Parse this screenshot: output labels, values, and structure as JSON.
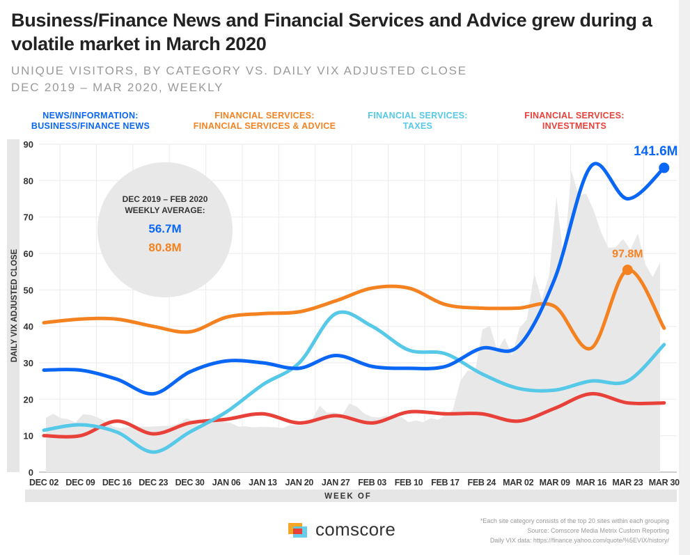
{
  "title": "Business/Finance News and Financial Services and Advice grew during a volatile market in March 2020",
  "subtitle1": "UNIQUE VISITORS, BY CATEGORY VS. DAILY VIX ADJUSTED CLOSE",
  "subtitle2": "DEC 2019 – MAR 2020, WEEKLY",
  "legend": [
    {
      "line1": "NEWS/INFORMATION:",
      "line2": "BUSINESS/FINANCE NEWS",
      "color": "#0a66f5"
    },
    {
      "line1": "FINANCIAL SERVICES:",
      "line2": "FINANCIAL SERVICES & ADVICE",
      "color": "#f58220"
    },
    {
      "line1": "FINANCIAL SERVICES:",
      "line2": "TAXES",
      "color": "#56c8e8"
    },
    {
      "line1": "FINANCIAL SERVICES:",
      "line2": "INVESTMENTS",
      "color": "#e8413a"
    }
  ],
  "callout": {
    "line1": "DEC 2019 – FEB 2020",
    "line2": "WEEKLY AVERAGE:",
    "value_news": "56.7M",
    "value_advice": "80.8M"
  },
  "footnotes": [
    "*Each site category consists of the top 20 sites within each grouping",
    "Source: Comscore Media Metrix Custom Reporting",
    "Daily VIX data: https://finance.yahoo.com/quote/%5EVIX/history/"
  ],
  "logo_text": "comscore",
  "chart_data": {
    "type": "line",
    "ylabel": "DAILY VIX ADJUSTED CLOSE",
    "xlabel": "WEEK OF",
    "ylim": [
      0,
      90
    ],
    "yticks": [
      0,
      10,
      20,
      30,
      40,
      50,
      60,
      70,
      80,
      90
    ],
    "grid": true,
    "categories": [
      "DEC 02",
      "DEC 09",
      "DEC 16",
      "DEC 23",
      "DEC 30",
      "JAN 06",
      "JAN 13",
      "JAN 20",
      "JAN 27",
      "FEB 03",
      "FEB 10",
      "FEB 17",
      "FEB 24",
      "MAR 02",
      "MAR 09",
      "MAR 16",
      "MAR 23",
      "MAR 30"
    ],
    "series": [
      {
        "name": "NEWS/INFORMATION: BUSINESS/FINANCE NEWS",
        "color": "#0a66f5",
        "values": [
          28,
          28,
          25.5,
          21.5,
          27.5,
          30.5,
          30,
          28.5,
          32,
          29,
          28.5,
          29,
          34,
          34.5,
          53,
          84,
          75,
          83.5
        ],
        "end_label": "141.6M",
        "label_index": 17
      },
      {
        "name": "FINANCIAL SERVICES: FINANCIAL SERVICES & ADVICE",
        "color": "#f58220",
        "values": [
          41,
          42,
          42,
          40,
          38.5,
          42.5,
          43.5,
          44,
          47,
          50.5,
          50.5,
          46,
          45,
          45,
          45.5,
          34,
          55.5,
          39.5
        ],
        "end_label": "97.8M",
        "label_index": 16
      },
      {
        "name": "FINANCIAL SERVICES: TAXES",
        "color": "#56c8e8",
        "values": [
          11.5,
          13,
          11,
          5.5,
          11,
          16.5,
          24,
          30,
          43.5,
          40,
          33.5,
          32.5,
          27,
          23,
          22.5,
          25,
          25,
          35
        ]
      },
      {
        "name": "FINANCIAL SERVICES: INVESTMENTS",
        "color": "#e8413a",
        "values": [
          10,
          10,
          14,
          10.5,
          13.5,
          14.5,
          16,
          13.5,
          15.5,
          13.5,
          16.5,
          16,
          16,
          14,
          17.5,
          21.5,
          19,
          19
        ]
      }
    ],
    "vix_area": {
      "color": "#e8e8e8",
      "values": [
        14.9,
        16.0,
        14.8,
        14.5,
        13.6,
        15.9,
        15.7,
        15.0,
        13.9,
        12.6,
        12.1,
        12.3,
        12.6,
        12.5,
        12.5,
        12.6,
        12.7,
        12.7,
        13.4,
        14.8,
        13.8,
        12.5,
        14.0,
        13.9,
        13.8,
        13.5,
        12.5,
        12.6,
        12.3,
        12.4,
        12.4,
        12.3,
        12.1,
        12.9,
        12.9,
        13.0,
        14.6,
        18.2,
        16.3,
        16.4,
        15.5,
        18.8,
        18.0,
        16.1,
        15.2,
        15.0,
        15.5,
        15.0,
        15.2,
        13.7,
        14.2,
        13.7,
        14.8,
        14.4,
        15.6,
        17.1,
        25.0,
        27.9,
        27.6,
        39.2,
        40.1,
        33.4,
        36.8,
        32.0,
        39.6,
        41.9,
        54.5,
        47.3,
        53.9,
        75.5,
        57.8,
        82.7,
        75.9,
        76.5,
        72.0,
        66.0,
        61.6,
        61.7,
        64.0,
        61.0,
        65.5,
        57.1,
        53.5,
        57.5
      ]
    }
  }
}
